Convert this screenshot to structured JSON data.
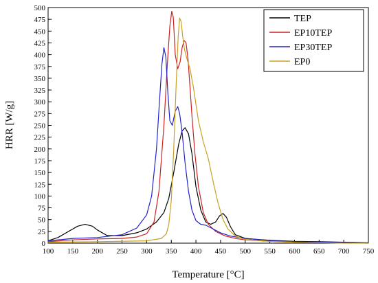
{
  "chart_data": {
    "type": "line",
    "title": "",
    "xlabel": "Temperature [°C]",
    "ylabel": "HRR [W/g]",
    "xlim": [
      100,
      750
    ],
    "ylim": [
      0,
      500
    ],
    "xticks": [
      100,
      150,
      200,
      250,
      300,
      350,
      400,
      450,
      500,
      550,
      600,
      650,
      700,
      750
    ],
    "yticks": [
      0,
      25,
      50,
      75,
      100,
      125,
      150,
      175,
      200,
      225,
      250,
      275,
      300,
      325,
      350,
      375,
      400,
      425,
      450,
      475,
      500
    ],
    "grid": false,
    "legend_position": "top-right",
    "series": [
      {
        "name": "TEP",
        "color": "#000000",
        "x": [
          100,
          120,
          140,
          160,
          175,
          190,
          200,
          220,
          250,
          280,
          300,
          320,
          335,
          345,
          355,
          365,
          372,
          378,
          385,
          392,
          400,
          410,
          420,
          430,
          440,
          448,
          455,
          462,
          470,
          480,
          500,
          550,
          600,
          650,
          700,
          750
        ],
        "y": [
          5,
          12,
          24,
          36,
          40,
          36,
          28,
          16,
          16,
          22,
          30,
          45,
          65,
          95,
          150,
          210,
          238,
          245,
          232,
          190,
          120,
          70,
          45,
          40,
          45,
          58,
          63,
          55,
          35,
          18,
          10,
          6,
          4,
          3,
          2,
          1
        ]
      },
      {
        "name": "EP10TEP",
        "color": "#cc2222",
        "x": [
          100,
          150,
          200,
          250,
          280,
          300,
          315,
          325,
          335,
          342,
          347,
          351,
          354,
          358,
          363,
          368,
          372,
          376,
          380,
          384,
          388,
          392,
          398,
          405,
          415,
          425,
          440,
          460,
          480,
          500,
          550,
          600,
          650,
          700,
          750
        ],
        "y": [
          3,
          7,
          9,
          10,
          13,
          20,
          45,
          110,
          250,
          380,
          460,
          492,
          480,
          400,
          370,
          385,
          415,
          430,
          425,
          390,
          330,
          270,
          190,
          120,
          65,
          40,
          25,
          15,
          10,
          7,
          4,
          2,
          1,
          1,
          0
        ]
      },
      {
        "name": "EP30TEP",
        "color": "#2222cc",
        "x": [
          100,
          150,
          200,
          250,
          280,
          300,
          310,
          320,
          326,
          331,
          335,
          339,
          343,
          347,
          352,
          358,
          363,
          367,
          372,
          378,
          385,
          392,
          400,
          410,
          420,
          435,
          450,
          470,
          500,
          550,
          600,
          650,
          700,
          750
        ],
        "y": [
          5,
          10,
          12,
          18,
          32,
          60,
          100,
          200,
          300,
          380,
          415,
          395,
          320,
          260,
          250,
          280,
          290,
          275,
          235,
          170,
          110,
          70,
          48,
          40,
          38,
          30,
          22,
          15,
          10,
          5,
          3,
          2,
          1,
          0
        ]
      },
      {
        "name": "EP0",
        "color": "#c8a020",
        "x": [
          100,
          200,
          300,
          330,
          340,
          345,
          350,
          355,
          360,
          364,
          367,
          370,
          373,
          377,
          382,
          388,
          395,
          405,
          415,
          425,
          435,
          445,
          455,
          465,
          480,
          500,
          550,
          600,
          650,
          700,
          750
        ],
        "y": [
          2,
          3,
          5,
          10,
          20,
          40,
          90,
          200,
          340,
          440,
          478,
          470,
          440,
          410,
          390,
          370,
          330,
          260,
          215,
          180,
          130,
          85,
          50,
          30,
          15,
          8,
          4,
          2,
          1,
          0,
          0
        ]
      }
    ]
  }
}
